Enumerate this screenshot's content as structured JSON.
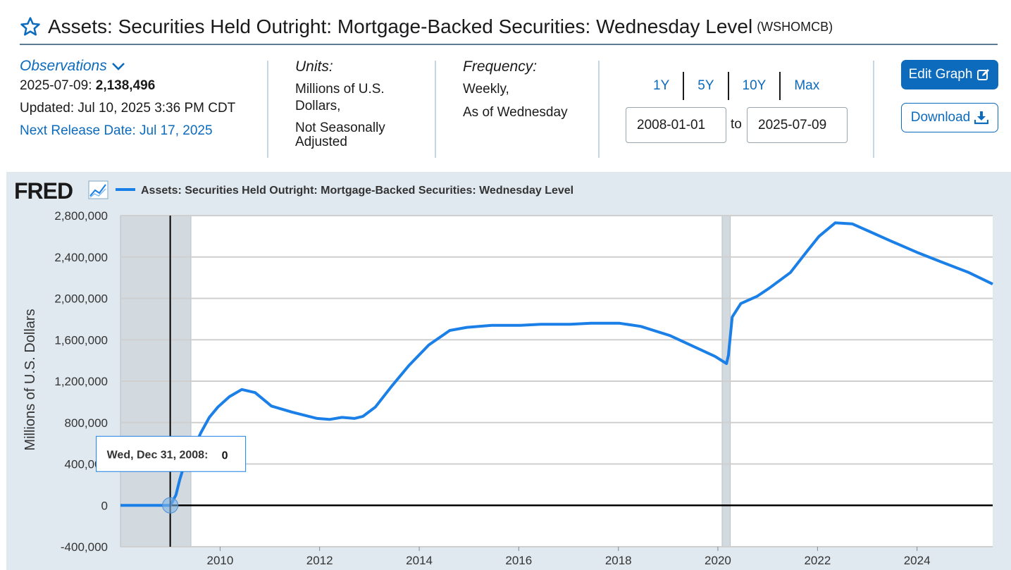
{
  "header": {
    "title": "Assets: Securities Held Outright: Mortgage-Backed Securities: Wednesday Level",
    "series_code": "(WSHOMCB)"
  },
  "observations": {
    "link_label": "Observations",
    "date": "2025-07-09:",
    "value": "2,138,496",
    "updated": "Updated: Jul 10, 2025 3:36 PM CDT",
    "next_release": "Next Release Date: Jul 17, 2025"
  },
  "units": {
    "label": "Units:",
    "line1": "Millions of U.S. Dollars,",
    "line2": "Not Seasonally Adjusted"
  },
  "frequency": {
    "label": "Frequency:",
    "line1": "Weekly,",
    "line2": "As of Wednesday"
  },
  "range": {
    "buttons": [
      "1Y",
      "5Y",
      "10Y",
      "Max"
    ],
    "start": "2008-01-01",
    "to_label": "to",
    "end": "2025-07-09"
  },
  "actions": {
    "edit_label": "Edit Graph",
    "download_label": "Download"
  },
  "icons": {
    "favorite": "star-outline-icon",
    "dropdown": "chevron-down-icon",
    "edit": "edit-pencil-icon",
    "download": "download-icon",
    "chart_type": "line-chart-icon"
  },
  "colors": {
    "accent": "#0c6bbd",
    "series": "#1a7fe6",
    "recession": "#d2d9df"
  },
  "chart_data": {
    "type": "line",
    "logo": "FRED",
    "legend_label": "Assets: Securities Held Outright: Mortgage-Backed Securities: Wednesday Level",
    "legend_position": "top-left",
    "ylabel": "Millions of U.S. Dollars",
    "xlabel": "",
    "ylim": [
      -400000,
      2800000
    ],
    "yticks": [
      -400000,
      0,
      400000,
      800000,
      1200000,
      1600000,
      2000000,
      2400000,
      2800000
    ],
    "ytick_labels": [
      "-400,000",
      "0",
      "400,000",
      "800,000",
      "1,200,000",
      "1,600,000",
      "2,000,000",
      "2,400,000",
      "2,800,000"
    ],
    "xlim": [
      "2008-01-01",
      "2025-07-09"
    ],
    "xticks": [
      "2010",
      "2012",
      "2014",
      "2016",
      "2018",
      "2020",
      "2022",
      "2024"
    ],
    "grid": true,
    "recessions": [
      [
        "2008-01-01",
        "2009-06-01"
      ],
      [
        "2020-02-01",
        "2020-04-01"
      ]
    ],
    "tooltip": {
      "date_label": "Wed, Dec 31, 2008:",
      "value_label": "0",
      "date": "2008-12-31",
      "value": 0
    },
    "series": [
      {
        "name": "Assets: Securities Held Outright: Mortgage-Backed Securities: Wednesday Level",
        "x": [
          "2008-01-01",
          "2008-12-31",
          "2009-01-14",
          "2009-02-11",
          "2009-03-11",
          "2009-04-15",
          "2009-06-10",
          "2009-08-12",
          "2009-10-14",
          "2009-12-16",
          "2010-03-10",
          "2010-06-09",
          "2010-09-15",
          "2011-01-12",
          "2011-06-15",
          "2011-12-14",
          "2012-03-14",
          "2012-06-13",
          "2012-09-12",
          "2012-11-14",
          "2013-02-13",
          "2013-06-12",
          "2013-10-16",
          "2014-03-12",
          "2014-08-13",
          "2014-12-17",
          "2015-06-17",
          "2016-01-13",
          "2016-06-15",
          "2017-01-11",
          "2017-06-14",
          "2018-01-10",
          "2018-06-13",
          "2019-01-16",
          "2019-06-12",
          "2019-12-11",
          "2020-03-04",
          "2020-03-18",
          "2020-04-15",
          "2020-06-17",
          "2020-10-14",
          "2021-01-13",
          "2021-06-16",
          "2021-10-13",
          "2022-01-12",
          "2022-05-11",
          "2022-09-14",
          "2023-01-11",
          "2023-06-14",
          "2024-01-10",
          "2024-06-12",
          "2025-01-15",
          "2025-07-09"
        ],
        "y": [
          0,
          0,
          30000,
          100000,
          250000,
          400000,
          520000,
          700000,
          850000,
          950000,
          1050000,
          1120000,
          1090000,
          960000,
          900000,
          840000,
          830000,
          850000,
          840000,
          860000,
          950000,
          1150000,
          1350000,
          1550000,
          1690000,
          1720000,
          1740000,
          1740000,
          1750000,
          1750000,
          1760000,
          1760000,
          1730000,
          1640000,
          1550000,
          1440000,
          1370000,
          1450000,
          1820000,
          1950000,
          2020000,
          2100000,
          2250000,
          2450000,
          2600000,
          2730000,
          2720000,
          2650000,
          2560000,
          2440000,
          2360000,
          2250000,
          2138496
        ]
      }
    ]
  }
}
